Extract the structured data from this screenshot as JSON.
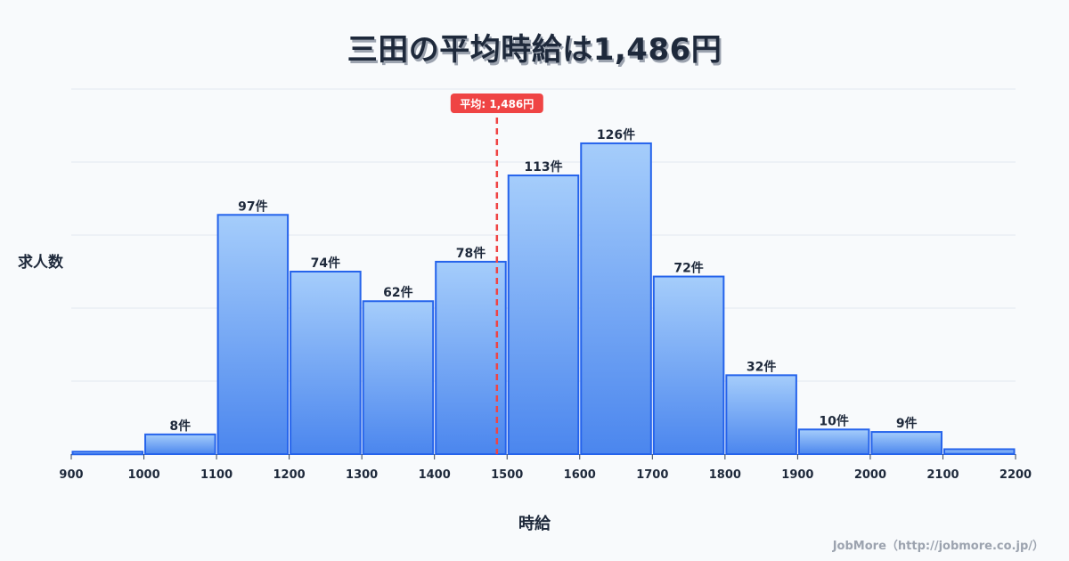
{
  "title": "三田の平均時給は1,486円",
  "y_axis_label": "求人数",
  "x_axis_label": "時給",
  "credit": "JobMore（http://jobmore.co.jp/）",
  "average": {
    "value": 1486,
    "label": "平均: 1,486円",
    "color": "#ef4444"
  },
  "colors": {
    "bar_top": "#a5cdfb",
    "bar_bottom": "#4b86ee",
    "bar_stroke": "#2563eb",
    "grid": "#e2e8f0",
    "text": "#1e293b"
  },
  "chart_data": {
    "type": "bar",
    "title": "三田の平均時給は1,486円",
    "xlabel": "時給",
    "ylabel": "求人数",
    "bins": [
      [
        900,
        1000
      ],
      [
        1000,
        1100
      ],
      [
        1100,
        1200
      ],
      [
        1200,
        1300
      ],
      [
        1300,
        1400
      ],
      [
        1400,
        1500
      ],
      [
        1500,
        1600
      ],
      [
        1600,
        1700
      ],
      [
        1700,
        1800
      ],
      [
        1800,
        1900
      ],
      [
        1900,
        2000
      ],
      [
        2000,
        2100
      ],
      [
        2100,
        2200
      ]
    ],
    "categories": [
      "900-1000",
      "1000-1100",
      "1100-1200",
      "1200-1300",
      "1300-1400",
      "1400-1500",
      "1500-1600",
      "1600-1700",
      "1700-1800",
      "1800-1900",
      "1900-2000",
      "2000-2100",
      "2100-2200"
    ],
    "values": [
      1,
      8,
      97,
      74,
      62,
      78,
      113,
      126,
      72,
      32,
      10,
      9,
      2
    ],
    "value_labels": [
      "",
      "8件",
      "97件",
      "74件",
      "62件",
      "78件",
      "113件",
      "126件",
      "72件",
      "32件",
      "10件",
      "9件",
      ""
    ],
    "x_ticks": [
      900,
      1000,
      1100,
      1200,
      1300,
      1400,
      1500,
      1600,
      1700,
      1800,
      1900,
      2000,
      2100,
      2200
    ],
    "xlim": [
      900,
      2200
    ],
    "ylim": [
      0,
      148
    ],
    "grid": true,
    "annotations": [
      {
        "type": "vline",
        "x": 1486,
        "label": "平均: 1,486円"
      }
    ]
  }
}
